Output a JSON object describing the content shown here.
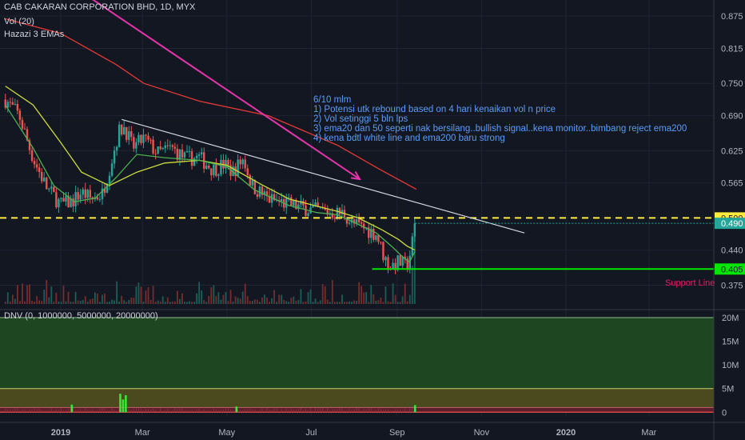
{
  "header": {
    "title": "CAB CAKARAN CORPORATION BHD, 1D, MYX",
    "vol": "Vol (20)",
    "emas": "Hazazi 3 EMAs"
  },
  "note": {
    "lines": [
      "6/10 mlm",
      "1) Potensi utk rebound based on 4 hari kenaikan vol n price",
      "2) Vol setinggi 5 bln lps",
      "3) ema20 dan 50 seperti nak bersilang..bullish signal..kena monitor..bimbang reject ema200",
      "4) kena bdtl white line and ema200 baru strong"
    ]
  },
  "support_label": "Support Line",
  "indicator_label": "DNV (0, 1000000, 5000000, 20000000)",
  "colors": {
    "background": "#131722",
    "up": "#26a69a",
    "down": "#ef5350",
    "ema20": "#4caf50",
    "ema50": "#cddc39",
    "ema200": "#e53935",
    "trend_arrow": "#e535ab",
    "white_line": "#d1d4dc",
    "support": "#00e600",
    "resistance": "#ffeb3b",
    "price_tag": "#26a69a"
  },
  "chart_data": {
    "type": "candlestick",
    "price_axis": {
      "ticks": [
        "0.875",
        "0.815",
        "0.750",
        "0.690",
        "0.625",
        "0.565",
        "0.500",
        "0.440",
        "0.375"
      ],
      "ylim": [
        0.34,
        0.905
      ]
    },
    "time_axis": {
      "labels": [
        "2019",
        "Mar",
        "May",
        "Jul",
        "Sep",
        "Nov",
        "2020",
        "Mar"
      ],
      "label_days": [
        0,
        59,
        120,
        181,
        243,
        304,
        365,
        425
      ]
    },
    "resistance_level": {
      "value": 0.5,
      "label": "0.500"
    },
    "last_price": {
      "value": 0.49,
      "label": "0.490"
    },
    "support_level": {
      "value": 0.405,
      "label": "0.405",
      "from_day": 225
    },
    "white_trendline": [
      {
        "day": 44,
        "price": 0.683
      },
      {
        "day": 335,
        "price": 0.472
      }
    ],
    "magenta_arrow": [
      {
        "day": 23,
        "price": 0.906
      },
      {
        "day": 216,
        "price": 0.572
      }
    ],
    "ema200_line": [
      {
        "day": -40,
        "price": 0.87
      },
      {
        "day": 0,
        "price": 0.843
      },
      {
        "day": 40,
        "price": 0.785
      },
      {
        "day": 60,
        "price": 0.75
      },
      {
        "day": 100,
        "price": 0.717
      },
      {
        "day": 150,
        "price": 0.69
      },
      {
        "day": 200,
        "price": 0.635
      },
      {
        "day": 230,
        "price": 0.591
      },
      {
        "day": 257,
        "price": 0.553
      }
    ],
    "ema50_line": [
      {
        "day": -40,
        "price": 0.745
      },
      {
        "day": -20,
        "price": 0.71
      },
      {
        "day": 0,
        "price": 0.64
      },
      {
        "day": 15,
        "price": 0.585
      },
      {
        "day": 35,
        "price": 0.56
      },
      {
        "day": 55,
        "price": 0.585
      },
      {
        "day": 75,
        "price": 0.602
      },
      {
        "day": 100,
        "price": 0.607
      },
      {
        "day": 120,
        "price": 0.598
      },
      {
        "day": 145,
        "price": 0.562
      },
      {
        "day": 165,
        "price": 0.535
      },
      {
        "day": 185,
        "price": 0.522
      },
      {
        "day": 200,
        "price": 0.512
      },
      {
        "day": 215,
        "price": 0.5
      },
      {
        "day": 232,
        "price": 0.478
      },
      {
        "day": 244,
        "price": 0.46
      },
      {
        "day": 250,
        "price": 0.448
      },
      {
        "day": 256,
        "price": 0.44
      }
    ],
    "ema20_line": [
      {
        "day": -40,
        "price": 0.71
      },
      {
        "day": -20,
        "price": 0.63
      },
      {
        "day": -5,
        "price": 0.56
      },
      {
        "day": 10,
        "price": 0.53
      },
      {
        "day": 25,
        "price": 0.537
      },
      {
        "day": 40,
        "price": 0.575
      },
      {
        "day": 55,
        "price": 0.618
      },
      {
        "day": 75,
        "price": 0.612
      },
      {
        "day": 100,
        "price": 0.607
      },
      {
        "day": 120,
        "price": 0.595
      },
      {
        "day": 140,
        "price": 0.552
      },
      {
        "day": 165,
        "price": 0.523
      },
      {
        "day": 185,
        "price": 0.51
      },
      {
        "day": 200,
        "price": 0.506
      },
      {
        "day": 215,
        "price": 0.488
      },
      {
        "day": 228,
        "price": 0.472
      },
      {
        "day": 240,
        "price": 0.445
      },
      {
        "day": 248,
        "price": 0.425
      },
      {
        "day": 252,
        "price": 0.418
      },
      {
        "day": 256,
        "price": 0.438
      }
    ],
    "price_path": [
      {
        "day": -40,
        "price": 0.72
      },
      {
        "day": -30,
        "price": 0.69
      },
      {
        "day": -20,
        "price": 0.61
      },
      {
        "day": -10,
        "price": 0.555
      },
      {
        "day": 0,
        "price": 0.525
      },
      {
        "day": 8,
        "price": 0.53
      },
      {
        "day": 15,
        "price": 0.548
      },
      {
        "day": 22,
        "price": 0.535
      },
      {
        "day": 30,
        "price": 0.545
      },
      {
        "day": 36,
        "price": 0.6
      },
      {
        "day": 42,
        "price": 0.66
      },
      {
        "day": 46,
        "price": 0.67
      },
      {
        "day": 52,
        "price": 0.63
      },
      {
        "day": 60,
        "price": 0.648
      },
      {
        "day": 70,
        "price": 0.62
      },
      {
        "day": 80,
        "price": 0.63
      },
      {
        "day": 90,
        "price": 0.61
      },
      {
        "day": 100,
        "price": 0.612
      },
      {
        "day": 110,
        "price": 0.59
      },
      {
        "day": 118,
        "price": 0.6
      },
      {
        "day": 124,
        "price": 0.585
      },
      {
        "day": 132,
        "price": 0.61
      },
      {
        "day": 138,
        "price": 0.56
      },
      {
        "day": 150,
        "price": 0.535
      },
      {
        "day": 165,
        "price": 0.525
      },
      {
        "day": 180,
        "price": 0.516
      },
      {
        "day": 195,
        "price": 0.51
      },
      {
        "day": 205,
        "price": 0.508
      },
      {
        "day": 210,
        "price": 0.49
      },
      {
        "day": 220,
        "price": 0.48
      },
      {
        "day": 228,
        "price": 0.47
      },
      {
        "day": 234,
        "price": 0.425
      },
      {
        "day": 238,
        "price": 0.41
      },
      {
        "day": 244,
        "price": 0.418
      },
      {
        "day": 250,
        "price": 0.41
      },
      {
        "day": 253,
        "price": 0.44
      },
      {
        "day": 255,
        "price": 0.47
      },
      {
        "day": 256,
        "price": 0.49
      }
    ],
    "volume_highlights": [
      {
        "day": 47,
        "fraction": 1.0
      },
      {
        "day": 43,
        "fraction": 0.88
      },
      {
        "day": 8,
        "fraction": 0.7
      },
      {
        "day": 17,
        "fraction": 0.55
      },
      {
        "day": 127,
        "fraction": 0.5
      },
      {
        "day": 256,
        "fraction": 0.95
      },
      {
        "day": 254,
        "fraction": 0.52
      }
    ],
    "dnv_axis": {
      "ticks": [
        "20M",
        "15M",
        "10M",
        "5M",
        "0"
      ],
      "values": [
        20000000,
        15000000,
        10000000,
        5000000,
        0
      ],
      "ylim": [
        -800000,
        20500000
      ]
    },
    "dnv_bands": [
      {
        "from": 5000000,
        "to": 20000000,
        "color": "#1e4620"
      },
      {
        "from": 1000000,
        "to": 5000000,
        "color": "#4a4a1e"
      },
      {
        "from": 0,
        "to": 1000000,
        "color": "#5a1e2a"
      }
    ],
    "dnv_spikes": [
      {
        "day": 43,
        "value": 3900000
      },
      {
        "day": 47,
        "value": 3600000
      },
      {
        "day": 45,
        "value": 2700000
      },
      {
        "day": 8,
        "value": 1600000
      },
      {
        "day": 127,
        "value": 1200000
      },
      {
        "day": 256,
        "value": 1500000
      }
    ]
  }
}
